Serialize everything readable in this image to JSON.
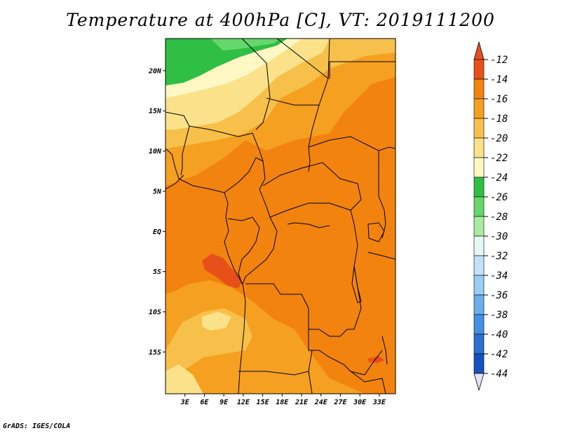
{
  "title": "Temperature at 400hPa [C], VT: 2019111200",
  "credit": "GrADS: IGES/COLA",
  "map": {
    "region": "Central Africa",
    "lat_ticks": [
      {
        "label": "20N",
        "lat": 20
      },
      {
        "label": "15N",
        "lat": 15
      },
      {
        "label": "10N",
        "lat": 10
      },
      {
        "label": "5N",
        "lat": 5
      },
      {
        "label": "EQ",
        "lat": 0
      },
      {
        "label": "5S",
        "lat": -5
      },
      {
        "label": "10S",
        "lat": -10
      },
      {
        "label": "15S",
        "lat": -15
      }
    ],
    "lon_ticks": [
      {
        "label": "3E",
        "lon": 3
      },
      {
        "label": "6E",
        "lon": 6
      },
      {
        "label": "9E",
        "lon": 9
      },
      {
        "label": "12E",
        "lon": 12
      },
      {
        "label": "15E",
        "lon": 15
      },
      {
        "label": "18E",
        "lon": 18
      },
      {
        "label": "21E",
        "lon": 21
      },
      {
        "label": "24E",
        "lon": 24
      },
      {
        "label": "27E",
        "lon": 27
      },
      {
        "label": "30E",
        "lon": 30
      },
      {
        "label": "33E",
        "lon": 33
      }
    ]
  },
  "colorbar": {
    "levels": [
      {
        "label": "-12",
        "color": "#e8501a"
      },
      {
        "label": "-14",
        "color": "#f2830e"
      },
      {
        "label": "-16",
        "color": "#f5a020"
      },
      {
        "label": "-18",
        "color": "#f7c04a"
      },
      {
        "label": "-20",
        "color": "#fbe28a"
      },
      {
        "label": "-22",
        "color": "#fff8c4"
      },
      {
        "label": "-24",
        "color": "#2fbf44"
      },
      {
        "label": "-26",
        "color": "#64d86a"
      },
      {
        "label": "-28",
        "color": "#a8eca2"
      },
      {
        "label": "-30",
        "color": "#e4f8f6"
      },
      {
        "label": "-32",
        "color": "#c0e2fa"
      },
      {
        "label": "-34",
        "color": "#9acdf6"
      },
      {
        "label": "-36",
        "color": "#6aaeee"
      },
      {
        "label": "-38",
        "color": "#4490e4"
      },
      {
        "label": "-40",
        "color": "#2c70d4"
      },
      {
        "label": "-42",
        "color": "#1452be"
      },
      {
        "label": "-44",
        "color": "#0a1a6e"
      }
    ],
    "top_arrow_color": "#e8501a",
    "bottom_arrow_color": "#e4e4f6"
  }
}
